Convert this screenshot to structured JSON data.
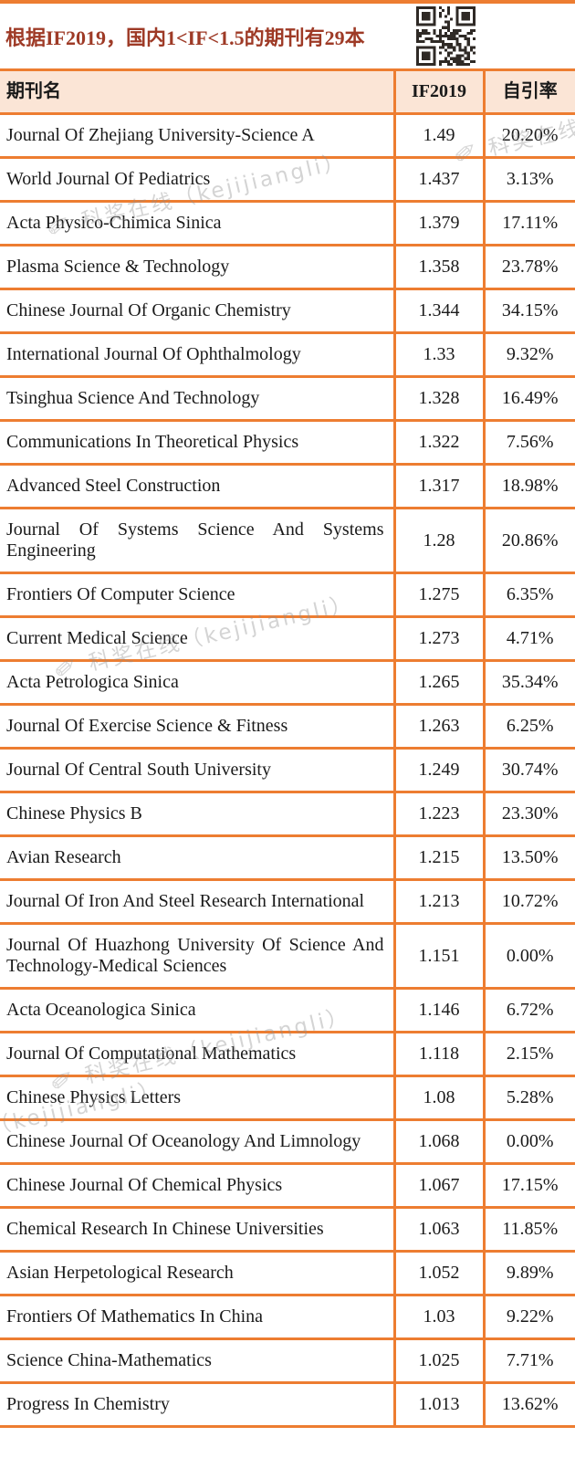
{
  "page": {
    "title": "根据IF2019，国内1<IF<1.5的期刊有29本"
  },
  "colors": {
    "accent": "#ED7D31",
    "header_bg": "#FBE5D6",
    "title_color": "#9E3A26"
  },
  "watermark": {
    "text": "科奖在线（kejijiangli）"
  },
  "table": {
    "headers": [
      "期刊名",
      "IF2019",
      "自引率"
    ],
    "rows": [
      {
        "name": "Journal Of Zhejiang University-Science A",
        "if2019": "1.49",
        "self_cite": "20.20%"
      },
      {
        "name": "World Journal Of Pediatrics",
        "if2019": "1.437",
        "self_cite": "3.13%"
      },
      {
        "name": "Acta Physico-Chimica Sinica",
        "if2019": "1.379",
        "self_cite": "17.11%"
      },
      {
        "name": "Plasma Science & Technology",
        "if2019": "1.358",
        "self_cite": "23.78%"
      },
      {
        "name": "Chinese Journal Of Organic Chemistry",
        "if2019": "1.344",
        "self_cite": "34.15%"
      },
      {
        "name": "International Journal Of Ophthalmology",
        "if2019": "1.33",
        "self_cite": "9.32%"
      },
      {
        "name": "Tsinghua Science And Technology",
        "if2019": "1.328",
        "self_cite": "16.49%"
      },
      {
        "name": "Communications In Theoretical Physics",
        "if2019": "1.322",
        "self_cite": "7.56%"
      },
      {
        "name": "Advanced Steel Construction",
        "if2019": "1.317",
        "self_cite": "18.98%"
      },
      {
        "name": "Journal Of Systems Science And Systems Engineering",
        "if2019": "1.28",
        "self_cite": "20.86%"
      },
      {
        "name": "Frontiers Of Computer Science",
        "if2019": "1.275",
        "self_cite": "6.35%"
      },
      {
        "name": "Current Medical Science",
        "if2019": "1.273",
        "self_cite": "4.71%"
      },
      {
        "name": "Acta Petrologica Sinica",
        "if2019": "1.265",
        "self_cite": "35.34%"
      },
      {
        "name": "Journal Of Exercise Science &  Fitness",
        "if2019": "1.263",
        "self_cite": "6.25%"
      },
      {
        "name": "Journal Of Central South University",
        "if2019": "1.249",
        "self_cite": "30.74%"
      },
      {
        "name": "Chinese Physics B",
        "if2019": "1.223",
        "self_cite": "23.30%"
      },
      {
        "name": "Avian Research",
        "if2019": "1.215",
        "self_cite": "13.50%"
      },
      {
        "name": "Journal Of Iron And Steel Research International",
        "if2019": "1.213",
        "self_cite": "10.72%"
      },
      {
        "name": "Journal Of Huazhong University Of  Science And Technology-Medical Sciences",
        "if2019": "1.151",
        "self_cite": "0.00%"
      },
      {
        "name": "Acta Oceanologica Sinica",
        "if2019": "1.146",
        "self_cite": "6.72%"
      },
      {
        "name": "Journal Of Computational Mathematics",
        "if2019": "1.118",
        "self_cite": "2.15%"
      },
      {
        "name": "Chinese Physics Letters",
        "if2019": "1.08",
        "self_cite": "5.28%"
      },
      {
        "name": "Chinese Journal Of Oceanology And Limnology",
        "if2019": "1.068",
        "self_cite": "0.00%"
      },
      {
        "name": "Chinese Journal Of Chemical Physics",
        "if2019": "1.067",
        "self_cite": "17.15%"
      },
      {
        "name": "Chemical Research In Chinese  Universities",
        "if2019": "1.063",
        "self_cite": "11.85%"
      },
      {
        "name": "Asian Herpetological Research",
        "if2019": "1.052",
        "self_cite": "9.89%"
      },
      {
        "name": "Frontiers Of Mathematics In China",
        "if2019": "1.03",
        "self_cite": "9.22%"
      },
      {
        "name": "Science China-Mathematics",
        "if2019": "1.025",
        "self_cite": "7.71%"
      },
      {
        "name": "Progress In Chemistry",
        "if2019": "1.013",
        "self_cite": "13.62%"
      }
    ]
  }
}
